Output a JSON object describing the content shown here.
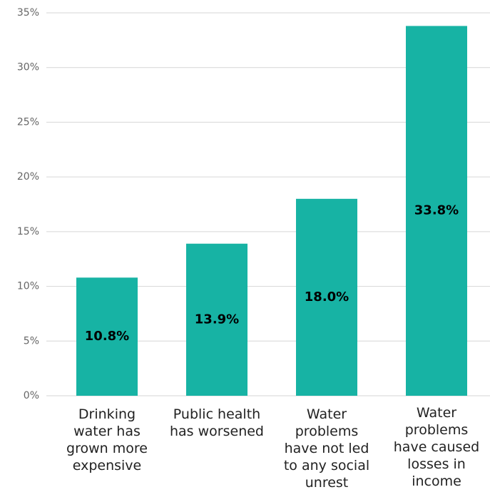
{
  "chart_data": {
    "type": "bar",
    "categories": [
      "Drinking water has grown more expensive",
      "Public health has worsened",
      "Water problems have not led to any social unrest",
      "Water problems have caused losses in income"
    ],
    "values": [
      10.8,
      13.9,
      18.0,
      33.8
    ],
    "value_labels": [
      "10.8%",
      "13.9%",
      "18.0%",
      "33.8%"
    ],
    "color": "#17b3a4",
    "ylim": [
      0,
      35
    ],
    "yticks": [
      {
        "value": 0,
        "label": "0%"
      },
      {
        "value": 5,
        "label": "5%"
      },
      {
        "value": 10,
        "label": "10%"
      },
      {
        "value": 15,
        "label": "15%"
      },
      {
        "value": 20,
        "label": "20%"
      },
      {
        "value": 25,
        "label": "25%"
      },
      {
        "value": 30,
        "label": "30%"
      },
      {
        "value": 35,
        "label": "35%"
      }
    ],
    "grid": true
  }
}
